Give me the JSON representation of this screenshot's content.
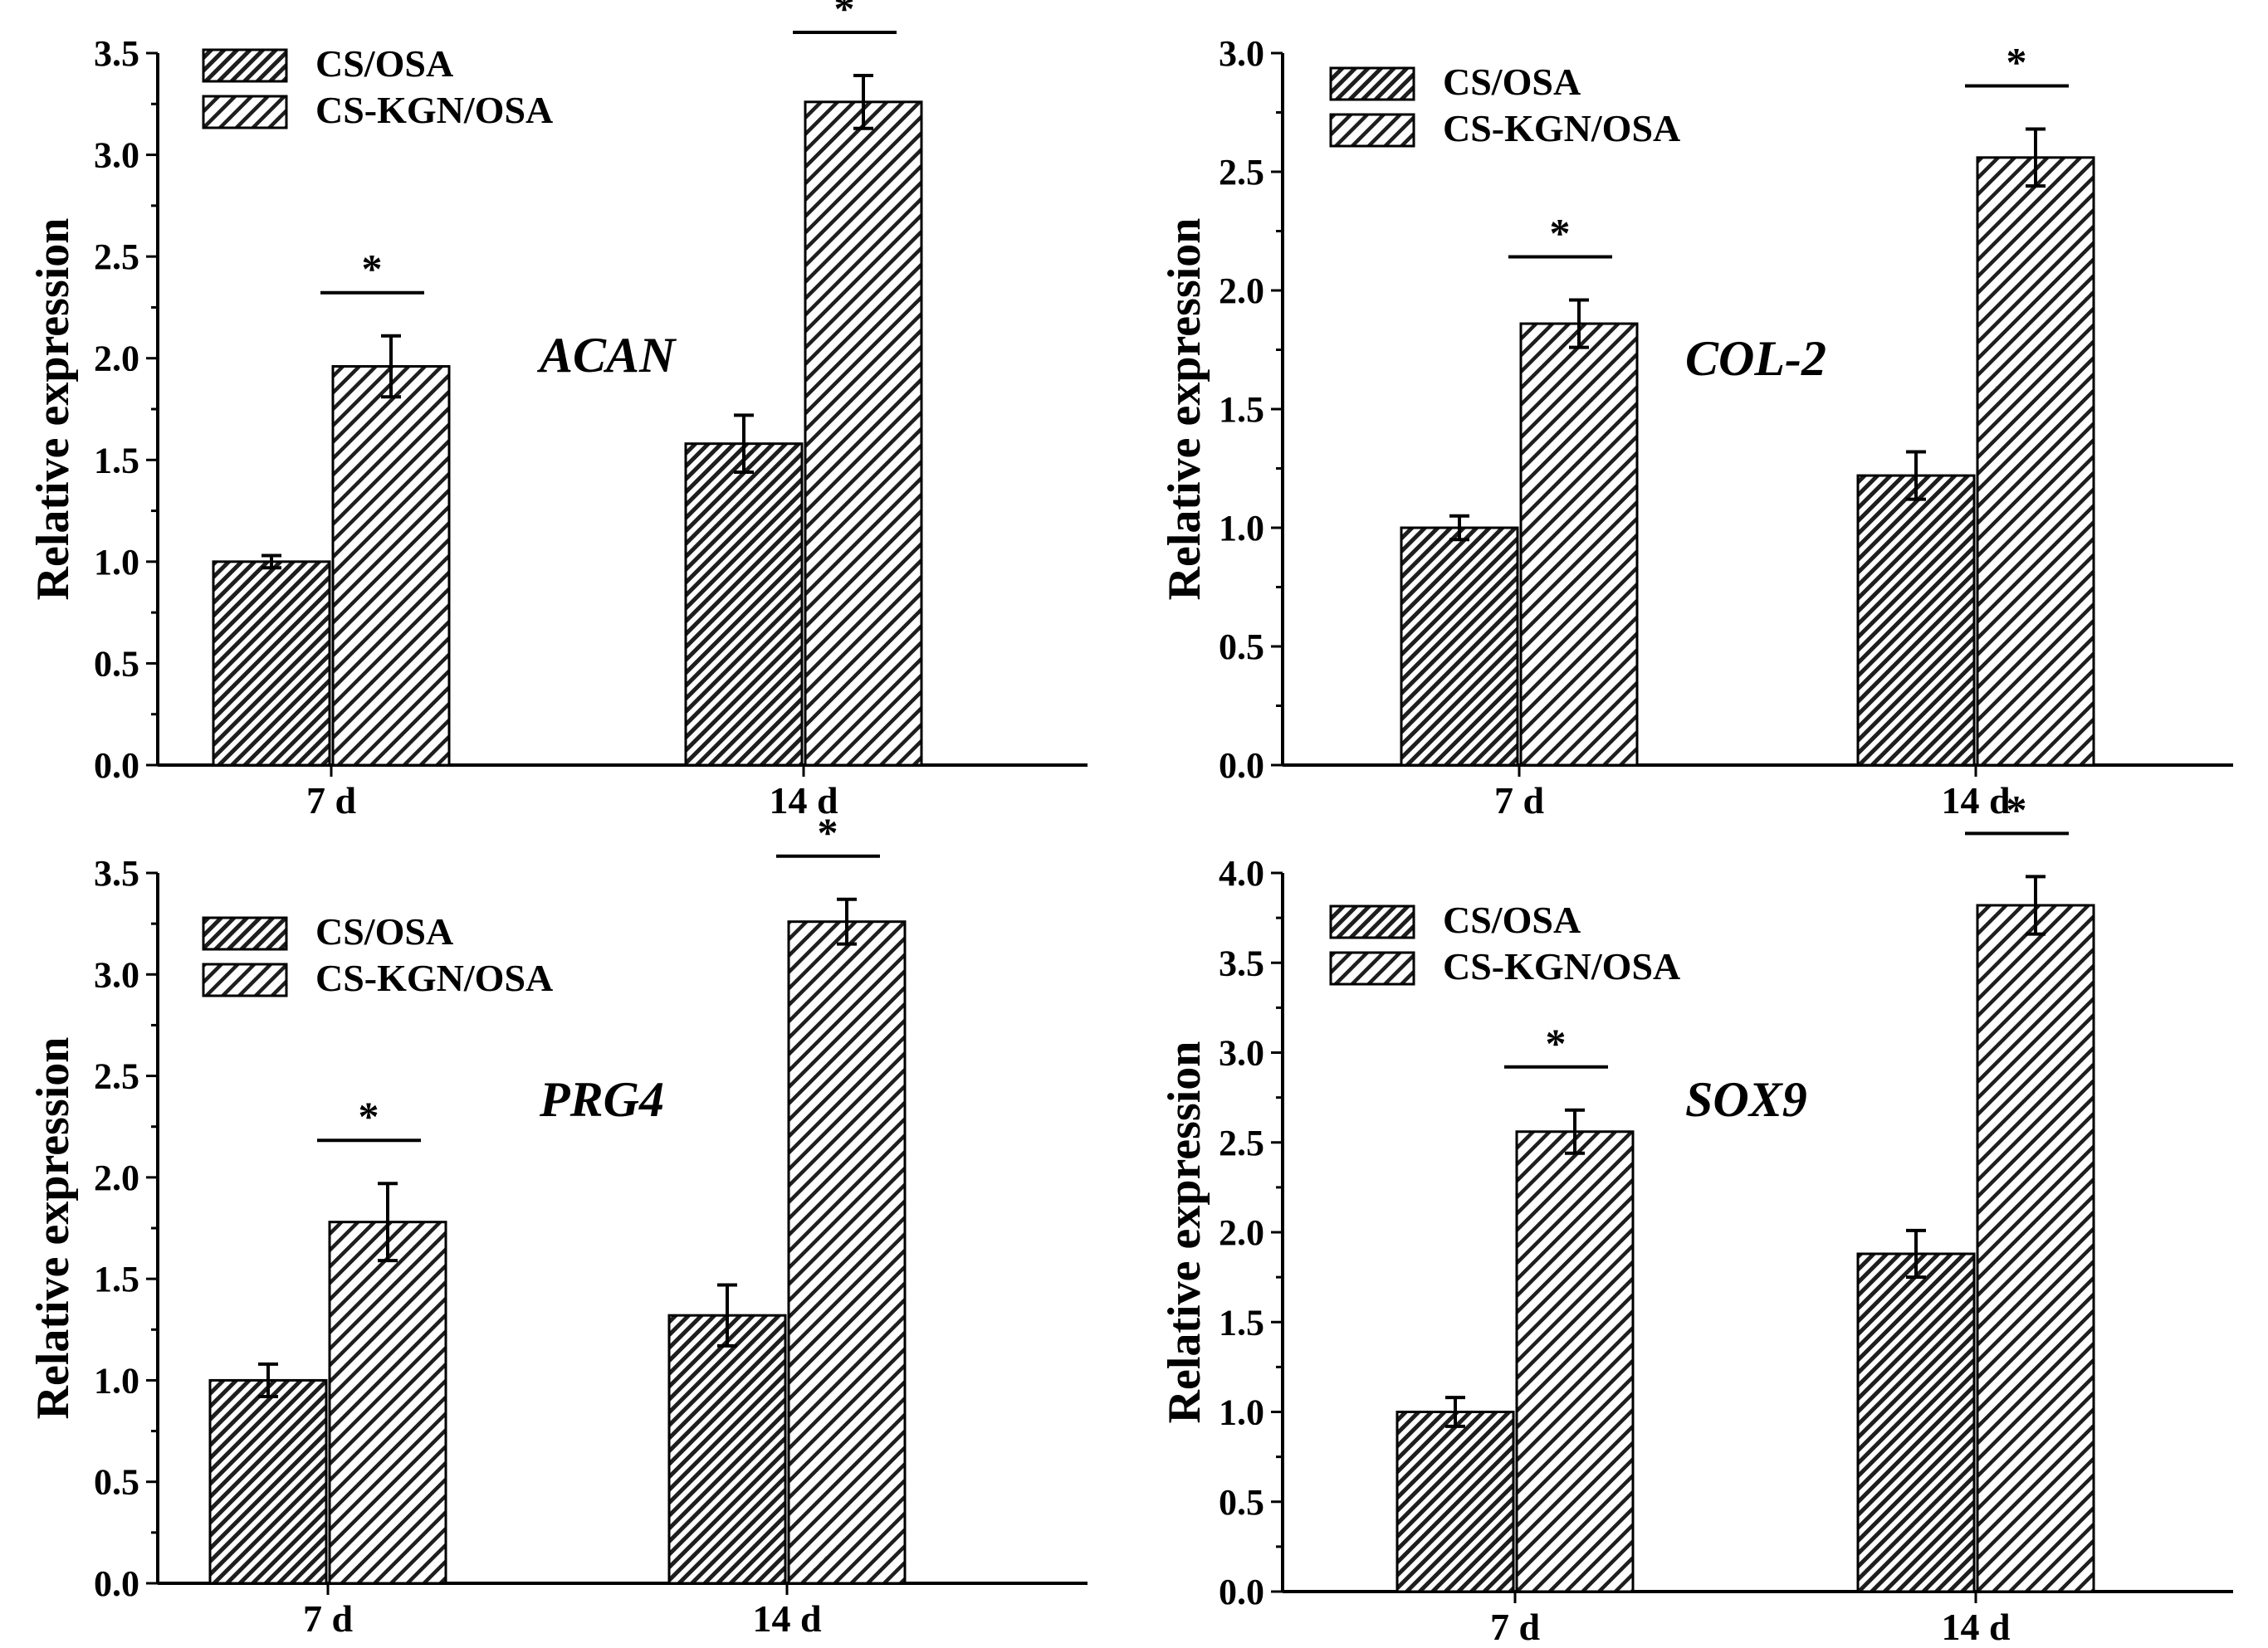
{
  "chart_data": [
    {
      "type": "bar",
      "panel": "top-left",
      "annotation": "ACAN",
      "ylabel": "Relative expression",
      "categories": [
        "7 d",
        "14 d"
      ],
      "ylim": [
        0,
        3.5
      ],
      "yticks": [
        "0.0",
        "0.5",
        "1.0",
        "1.5",
        "2.0",
        "2.5",
        "3.0",
        "3.5"
      ],
      "series": [
        {
          "name": "CS/OSA",
          "values": [
            1.0,
            1.58
          ],
          "errors": [
            0.03,
            0.14
          ],
          "pattern": "dense-hatch"
        },
        {
          "name": "CS-KGN/OSA",
          "values": [
            1.96,
            3.26
          ],
          "errors": [
            0.15,
            0.13
          ],
          "pattern": "hatch"
        }
      ],
      "significance": [
        "*",
        "*"
      ],
      "legend": "top-left"
    },
    {
      "type": "bar",
      "panel": "top-right",
      "annotation": "COL-2",
      "ylabel": "Relative expression",
      "categories": [
        "7 d",
        "14 d"
      ],
      "ylim": [
        0,
        3.0
      ],
      "yticks": [
        "0.0",
        "0.5",
        "1.0",
        "1.5",
        "2.0",
        "2.5",
        "3.0"
      ],
      "series": [
        {
          "name": "CS/OSA",
          "values": [
            1.0,
            1.22
          ],
          "errors": [
            0.05,
            0.1
          ],
          "pattern": "dense-hatch"
        },
        {
          "name": "CS-KGN/OSA",
          "values": [
            1.86,
            2.56
          ],
          "errors": [
            0.1,
            0.12
          ],
          "pattern": "hatch"
        }
      ],
      "significance": [
        "*",
        "*"
      ],
      "legend": "top-left"
    },
    {
      "type": "bar",
      "panel": "bottom-left",
      "annotation": "PRG4",
      "ylabel": "Relative expression",
      "categories": [
        "7 d",
        "14 d"
      ],
      "ylim": [
        0,
        3.5
      ],
      "yticks": [
        "0.0",
        "0.5",
        "1.0",
        "1.5",
        "2.0",
        "2.5",
        "3.0",
        "3.5"
      ],
      "series": [
        {
          "name": "CS/OSA",
          "values": [
            1.0,
            1.32
          ],
          "errors": [
            0.08,
            0.15
          ],
          "pattern": "dense-hatch"
        },
        {
          "name": "CS-KGN/OSA",
          "values": [
            1.78,
            3.26
          ],
          "errors": [
            0.19,
            0.11
          ],
          "pattern": "hatch"
        }
      ],
      "significance": [
        "*",
        "*"
      ],
      "legend": "top-left"
    },
    {
      "type": "bar",
      "panel": "bottom-right",
      "annotation": "SOX9",
      "ylabel": "Relative expression",
      "categories": [
        "7 d",
        "14 d"
      ],
      "ylim": [
        0,
        4.0
      ],
      "yticks": [
        "0.0",
        "0.5",
        "1.0",
        "1.5",
        "2.0",
        "2.5",
        "3.0",
        "3.5",
        "4.0"
      ],
      "series": [
        {
          "name": "CS/OSA",
          "values": [
            1.0,
            1.88
          ],
          "errors": [
            0.08,
            0.13
          ],
          "pattern": "dense-hatch"
        },
        {
          "name": "CS-KGN/OSA",
          "values": [
            2.56,
            3.82
          ],
          "errors": [
            0.12,
            0.16
          ],
          "pattern": "hatch"
        }
      ],
      "significance": [
        "*",
        "*"
      ],
      "legend": "top-left"
    }
  ]
}
